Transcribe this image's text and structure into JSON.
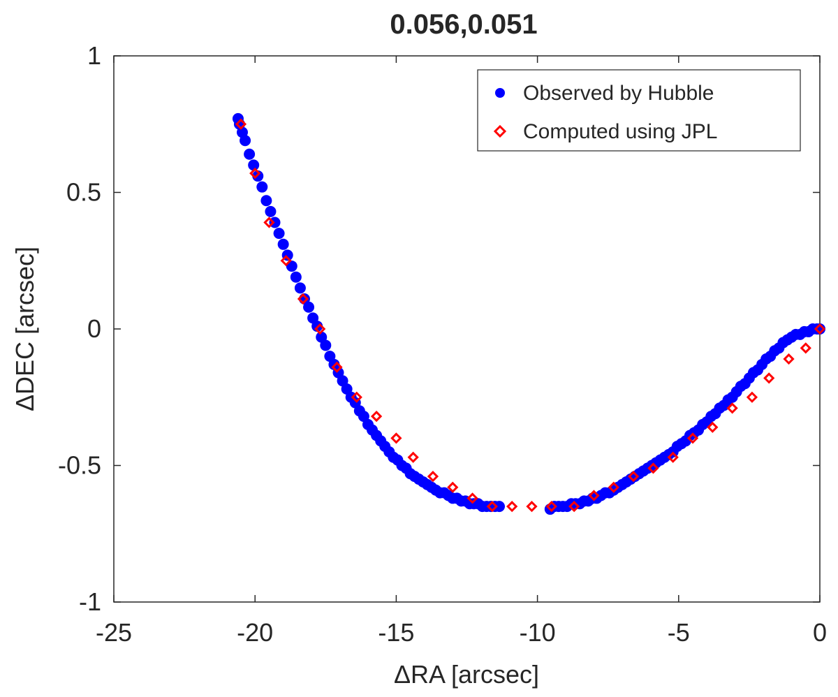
{
  "chart_data": {
    "type": "scatter",
    "title": "0.056,0.051",
    "xlabel": "ΔRA [arcsec]",
    "ylabel": "ΔDEC [arcsec]",
    "xlim": [
      -25,
      0
    ],
    "ylim": [
      -1,
      1
    ],
    "xticks": [
      "-25",
      "-20",
      "-15",
      "-10",
      "-5",
      "0"
    ],
    "yticks": [
      "1",
      "0.5",
      "0",
      "-0.5",
      "-1"
    ],
    "grid": false,
    "legend_position": "top-right",
    "series": [
      {
        "name": "Observed by Hubble",
        "marker": "filled-circle",
        "color": "#0000ff",
        "x": [
          -20.6,
          -20.55,
          -20.45,
          -20.35,
          -20.2,
          -20.05,
          -19.9,
          -19.75,
          -19.6,
          -19.45,
          -19.3,
          -19.15,
          -19.0,
          -18.85,
          -18.7,
          -18.55,
          -18.4,
          -18.25,
          -18.1,
          -17.95,
          -17.8,
          -17.65,
          -17.5,
          -17.35,
          -17.2,
          -17.05,
          -16.9,
          -16.75,
          -16.6,
          -16.45,
          -16.3,
          -16.15,
          -16.0,
          -15.85,
          -15.7,
          -15.55,
          -15.4,
          -15.25,
          -15.1,
          -14.95,
          -14.8,
          -14.65,
          -14.5,
          -14.35,
          -14.2,
          -14.05,
          -13.9,
          -13.75,
          -13.6,
          -13.45,
          -13.3,
          -13.15,
          -13.0,
          -12.85,
          -12.7,
          -12.55,
          -12.4,
          -12.25,
          -12.1,
          -11.95,
          -11.8,
          -11.65,
          -11.5,
          -11.35,
          -9.55,
          -9.4,
          -9.25,
          -9.1,
          -8.95,
          -8.8,
          -8.65,
          -8.5,
          -8.35,
          -8.2,
          -8.05,
          -7.9,
          -7.75,
          -7.6,
          -7.45,
          -7.3,
          -7.15,
          -7.0,
          -6.85,
          -6.7,
          -6.55,
          -6.4,
          -6.25,
          -6.1,
          -5.95,
          -5.8,
          -5.65,
          -5.5,
          -5.35,
          -5.2,
          -5.05,
          -4.9,
          -4.75,
          -4.6,
          -4.45,
          -4.3,
          -4.15,
          -4.0,
          -3.85,
          -3.7,
          -3.55,
          -3.4,
          -3.25,
          -3.1,
          -2.95,
          -2.8,
          -2.65,
          -2.5,
          -2.35,
          -2.2,
          -2.05,
          -1.9,
          -1.75,
          -1.6,
          -1.45,
          -1.3,
          -1.15,
          -1.0,
          -0.85,
          -0.7,
          -0.55,
          -0.4,
          -0.25,
          -0.1,
          0.0
        ],
        "y": [
          0.77,
          0.75,
          0.72,
          0.69,
          0.64,
          0.6,
          0.56,
          0.52,
          0.47,
          0.43,
          0.39,
          0.35,
          0.31,
          0.27,
          0.23,
          0.19,
          0.15,
          0.11,
          0.08,
          0.04,
          0.01,
          -0.03,
          -0.06,
          -0.1,
          -0.13,
          -0.16,
          -0.19,
          -0.22,
          -0.25,
          -0.27,
          -0.3,
          -0.32,
          -0.35,
          -0.37,
          -0.39,
          -0.41,
          -0.43,
          -0.45,
          -0.47,
          -0.48,
          -0.5,
          -0.51,
          -0.53,
          -0.54,
          -0.55,
          -0.56,
          -0.57,
          -0.58,
          -0.59,
          -0.6,
          -0.6,
          -0.61,
          -0.62,
          -0.62,
          -0.63,
          -0.63,
          -0.64,
          -0.64,
          -0.64,
          -0.65,
          -0.65,
          -0.65,
          -0.65,
          -0.65,
          -0.66,
          -0.65,
          -0.65,
          -0.65,
          -0.65,
          -0.64,
          -0.64,
          -0.64,
          -0.63,
          -0.63,
          -0.62,
          -0.62,
          -0.61,
          -0.6,
          -0.6,
          -0.59,
          -0.58,
          -0.57,
          -0.56,
          -0.55,
          -0.54,
          -0.53,
          -0.52,
          -0.51,
          -0.5,
          -0.49,
          -0.48,
          -0.47,
          -0.46,
          -0.45,
          -0.43,
          -0.42,
          -0.41,
          -0.39,
          -0.38,
          -0.37,
          -0.35,
          -0.34,
          -0.32,
          -0.31,
          -0.29,
          -0.28,
          -0.26,
          -0.25,
          -0.23,
          -0.21,
          -0.2,
          -0.18,
          -0.16,
          -0.15,
          -0.13,
          -0.11,
          -0.1,
          -0.08,
          -0.07,
          -0.05,
          -0.04,
          -0.03,
          -0.02,
          -0.02,
          -0.01,
          -0.01,
          0.0,
          0.0,
          0.0
        ]
      },
      {
        "name": "Computed using JPL",
        "marker": "open-diamond",
        "color": "#ff0000",
        "x": [
          -20.5,
          -20.0,
          -19.5,
          -18.9,
          -18.3,
          -17.7,
          -17.1,
          -16.4,
          -15.7,
          -15.0,
          -14.4,
          -13.7,
          -13.0,
          -12.3,
          -11.6,
          -10.9,
          -10.2,
          -9.5,
          -8.7,
          -8.0,
          -7.3,
          -6.6,
          -5.9,
          -5.2,
          -4.5,
          -3.8,
          -3.1,
          -2.4,
          -1.8,
          -1.1,
          -0.5,
          0.0
        ],
        "y": [
          0.75,
          0.57,
          0.39,
          0.25,
          0.11,
          0.0,
          -0.14,
          -0.25,
          -0.32,
          -0.4,
          -0.47,
          -0.54,
          -0.58,
          -0.62,
          -0.65,
          -0.65,
          -0.65,
          -0.65,
          -0.65,
          -0.61,
          -0.58,
          -0.54,
          -0.51,
          -0.47,
          -0.4,
          -0.36,
          -0.29,
          -0.25,
          -0.18,
          -0.11,
          -0.07,
          0.0
        ]
      }
    ]
  }
}
